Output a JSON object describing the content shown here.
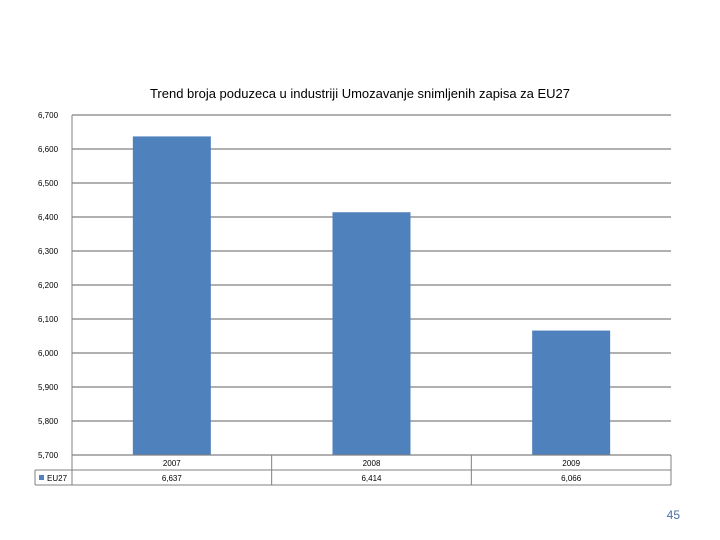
{
  "chart_data": {
    "type": "bar",
    "title": "Trend broja poduzeca u industriji Umozavanje snimljenih zapisa za EU27",
    "categories": [
      "2007",
      "2008",
      "2009"
    ],
    "series": [
      {
        "name": "EU27",
        "values": [
          6637,
          6414,
          6066
        ],
        "value_labels": [
          "6,637",
          "6,414",
          "6,066"
        ],
        "color": "#4f81bd"
      }
    ],
    "y_ticks": [
      5700,
      5800,
      5900,
      6000,
      6100,
      6200,
      6300,
      6400,
      6500,
      6600,
      6700
    ],
    "y_tick_labels": [
      "5,700",
      "5,800",
      "5,900",
      "6,000",
      "6,100",
      "6,200",
      "6,300",
      "6,400",
      "6,500",
      "6,600",
      "6,700"
    ],
    "ylim": [
      5700,
      6700
    ],
    "xlabel": "",
    "ylabel": "",
    "grid": true,
    "legend": "data-table-left",
    "data_table": true,
    "gridline_color": "#808080"
  },
  "page": {
    "number": "45"
  }
}
